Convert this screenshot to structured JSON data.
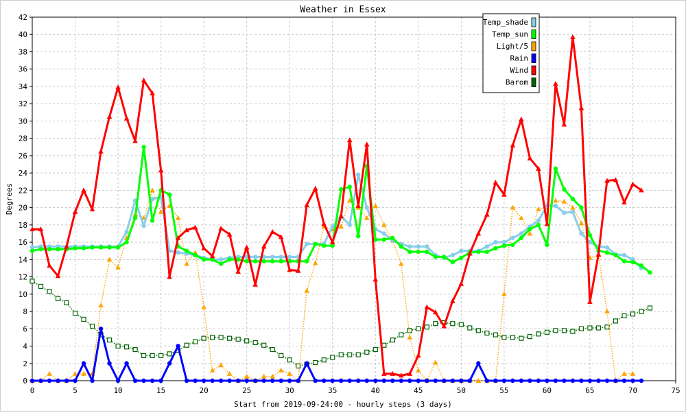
{
  "chart_data": {
    "type": "line",
    "title": "Weather in Essex",
    "xlabel": "Start from 2019-09-24:00 - hourly steps (3 days)",
    "ylabel": "Degrees",
    "xlim": [
      0,
      75
    ],
    "ylim": [
      0,
      42
    ],
    "xticks": [
      0,
      5,
      10,
      15,
      20,
      25,
      30,
      35,
      40,
      45,
      50,
      55,
      60,
      65,
      70,
      75
    ],
    "yticks": [
      0,
      2,
      4,
      6,
      8,
      10,
      12,
      14,
      16,
      18,
      20,
      22,
      24,
      26,
      28,
      30,
      32,
      34,
      36,
      38,
      40,
      42
    ],
    "grid": true,
    "legend_position": "top-right",
    "series": [
      {
        "name": "Temp_shade",
        "color": "#87ceeb",
        "style": "solid",
        "marker": "circle",
        "values": [
          15.4,
          15.5,
          15.5,
          15.5,
          15.5,
          15.5,
          15.5,
          15.5,
          15.5,
          15.5,
          15.5,
          17.2,
          20.8,
          17.9,
          21.0,
          21.2,
          15.0,
          14.8,
          14.7,
          14.5,
          14.2,
          14.0,
          14.0,
          14.2,
          14.3,
          14.3,
          14.3,
          14.3,
          14.3,
          14.3,
          14.3,
          14.3,
          15.8,
          15.8,
          15.8,
          17.8,
          19.0,
          18.0,
          23.8,
          20.0,
          17.5,
          17.0,
          16.2,
          15.8,
          15.5,
          15.5,
          15.5,
          14.5,
          14.2,
          14.5,
          15.0,
          15.0,
          15.0,
          15.5,
          16.0,
          16.0,
          16.5,
          17.0,
          17.8,
          18.5,
          20.2,
          20.2,
          19.4,
          19.5,
          17.0,
          16.0,
          15.5,
          15.4,
          14.6,
          14.5,
          14.0,
          13.0
        ]
      },
      {
        "name": "Temp_sun",
        "color": "#00ff00",
        "style": "solid",
        "marker": "circle",
        "values": [
          15.0,
          15.2,
          15.2,
          15.2,
          15.2,
          15.3,
          15.3,
          15.4,
          15.4,
          15.4,
          15.4,
          16.0,
          18.8,
          27.0,
          18.5,
          22.0,
          21.5,
          15.5,
          15.0,
          14.5,
          14.0,
          14.0,
          13.5,
          14.0,
          14.0,
          13.8,
          13.8,
          13.8,
          13.8,
          13.8,
          13.8,
          13.8,
          13.8,
          15.8,
          15.6,
          15.6,
          22.1,
          22.4,
          16.7,
          24.8,
          16.3,
          16.3,
          16.5,
          15.5,
          14.9,
          14.9,
          14.9,
          14.3,
          14.3,
          13.7,
          14.2,
          14.8,
          14.9,
          14.9,
          15.3,
          15.6,
          15.7,
          16.5,
          17.5,
          18.0,
          15.7,
          24.5,
          22.1,
          21.0,
          20.0,
          16.8,
          15.0,
          14.8,
          14.5,
          13.8,
          13.7,
          13.3,
          12.5
        ]
      },
      {
        "name": "Light/5",
        "color": "#ffa500",
        "style": "dotted",
        "marker": "triangle",
        "values": [
          0,
          0,
          0.8,
          0,
          0,
          0.8,
          0.8,
          0.8,
          8.7,
          14.0,
          13.1,
          16.5,
          19.2,
          18.8,
          22.0,
          19.5,
          20.2,
          18.8,
          13.5,
          14.8,
          8.5,
          1.2,
          1.8,
          0.8,
          0,
          0.5,
          0,
          0.5,
          0.5,
          1.2,
          0.8,
          0,
          10.4,
          13.6,
          17.8,
          17.5,
          17.8,
          20.8,
          20.0,
          18.8,
          20.2,
          18.0,
          16.2,
          13.5,
          5.0,
          1.2,
          0,
          2.1,
          0,
          0,
          0,
          0,
          0,
          0,
          0,
          10.0,
          20.0,
          18.8,
          17.0,
          19.8,
          20.0,
          20.8,
          20.7,
          20.0,
          18.2,
          14.2,
          14.5,
          8.0,
          0,
          0.8,
          0.8
        ]
      },
      {
        "name": "Rain",
        "color": "#0000ff",
        "style": "solid",
        "marker": "circle",
        "values": [
          0,
          0,
          0,
          0,
          0,
          0,
          2.0,
          0,
          6.0,
          2.0,
          0,
          2.0,
          0,
          0,
          0,
          0,
          2.0,
          4.0,
          0,
          0,
          0,
          0,
          0,
          0,
          0,
          0,
          0,
          0,
          0,
          0,
          0,
          0,
          2.0,
          0,
          0,
          0,
          0,
          0,
          0,
          0,
          0,
          0,
          0,
          0,
          0,
          0,
          0,
          0,
          0,
          0,
          0,
          0,
          2.0,
          0,
          0,
          0,
          0,
          0,
          0,
          0,
          0,
          0,
          0,
          0,
          0,
          0,
          0,
          0,
          0,
          0,
          0,
          0
        ]
      },
      {
        "name": "Wind",
        "color": "#ff0000",
        "style": "solid",
        "marker": "triangle",
        "values": [
          17.5,
          17.5,
          13.3,
          12.1,
          15.5,
          19.5,
          22.0,
          19.8,
          26.5,
          30.5,
          33.9,
          30.3,
          27.7,
          34.7,
          33.2,
          24.3,
          12.0,
          16.5,
          17.4,
          17.7,
          15.3,
          14.4,
          17.6,
          16.9,
          12.6,
          15.4,
          11.1,
          15.5,
          17.2,
          16.6,
          12.8,
          12.7,
          20.3,
          22.2,
          18.1,
          16.0,
          19.0,
          27.8,
          20.2,
          27.3,
          11.7,
          0.8,
          0.8,
          0.6,
          0.8,
          2.9,
          8.5,
          7.9,
          6.3,
          9.2,
          11.2,
          14.7,
          17.0,
          19.2,
          22.9,
          21.5,
          27.2,
          30.2,
          25.7,
          24.5,
          18.1,
          34.3,
          29.6,
          39.7,
          31.5,
          9.1,
          14.6,
          23.1,
          23.2,
          20.6,
          22.7,
          22.0
        ]
      },
      {
        "name": "Barom",
        "color": "#006400",
        "style": "dotted",
        "marker": "square",
        "values": [
          11.5,
          10.9,
          10.3,
          9.5,
          9.0,
          7.8,
          7.1,
          6.3,
          5.3,
          4.7,
          4.0,
          3.9,
          3.6,
          2.9,
          2.9,
          2.9,
          3.1,
          3.5,
          4.1,
          4.5,
          4.9,
          5.0,
          5.0,
          4.9,
          4.8,
          4.6,
          4.4,
          4.1,
          3.6,
          2.9,
          2.4,
          1.7,
          1.9,
          2.1,
          2.4,
          2.7,
          3.0,
          3.0,
          3.0,
          3.3,
          3.6,
          4.1,
          4.7,
          5.3,
          5.8,
          6.0,
          6.2,
          6.6,
          6.7,
          6.6,
          6.5,
          6.1,
          5.8,
          5.5,
          5.3,
          5.0,
          5.0,
          4.9,
          5.1,
          5.4,
          5.6,
          5.8,
          5.8,
          5.7,
          6.0,
          6.1,
          6.1,
          6.2,
          6.9,
          7.5,
          7.7,
          8.0,
          8.4
        ]
      }
    ]
  }
}
